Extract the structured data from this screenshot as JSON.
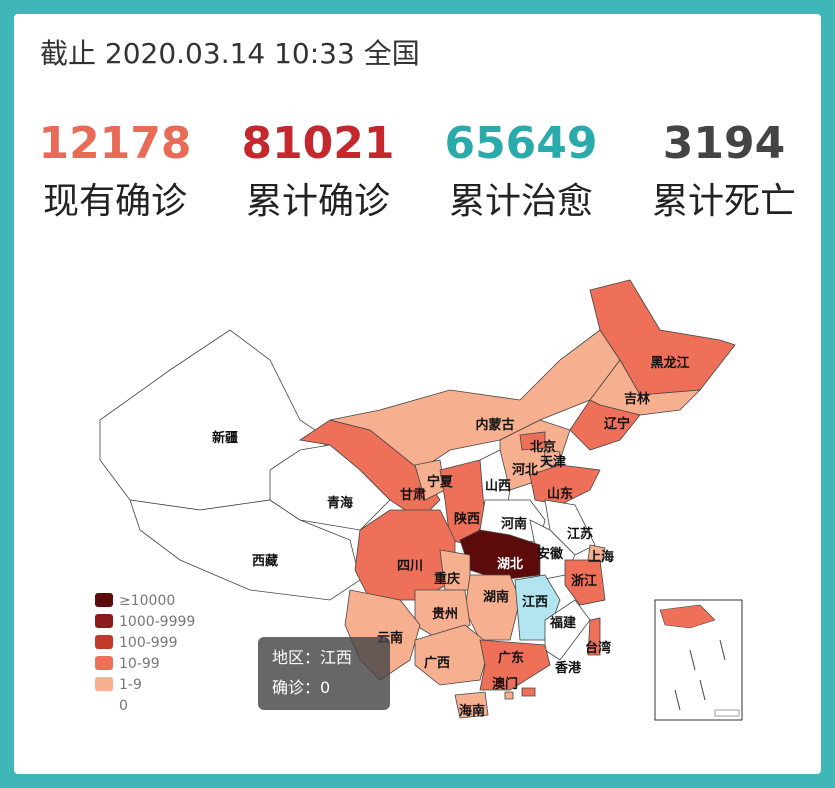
{
  "header": {
    "title": "截止 2020.03.14 10:33 全国"
  },
  "stats": [
    {
      "value": 12178,
      "label": "现有确诊",
      "color": "#e96b57"
    },
    {
      "value": 81021,
      "label": "累计确诊",
      "color": "#c4272c"
    },
    {
      "value": 65649,
      "label": "累计治愈",
      "color": "#2aaaaa"
    },
    {
      "value": 3194,
      "label": "累计死亡",
      "color": "#444444"
    }
  ],
  "legend": [
    {
      "label": "≥10000",
      "color": "#5c0a0a"
    },
    {
      "label": "1000-9999",
      "color": "#8b1a1a"
    },
    {
      "label": "100-999",
      "color": "#c0392b"
    },
    {
      "label": "10-99",
      "color": "#ee7058"
    },
    {
      "label": "1-9",
      "color": "#f7b08f"
    },
    {
      "label": "0",
      "color": "#ffffff"
    }
  ],
  "provinces": [
    {
      "name": "新疆",
      "color": "#ffffff"
    },
    {
      "name": "西藏",
      "color": "#ffffff"
    },
    {
      "name": "青海",
      "color": "#ffffff"
    },
    {
      "name": "甘肃",
      "color": "#ee7058"
    },
    {
      "name": "内蒙古",
      "color": "#f7b08f"
    },
    {
      "name": "黑龙江",
      "color": "#ee7058"
    },
    {
      "name": "吉林",
      "color": "#f7b08f"
    },
    {
      "name": "辽宁",
      "color": "#ee7058"
    },
    {
      "name": "河北",
      "color": "#f7b08f"
    },
    {
      "name": "北京",
      "color": "#ee7058"
    },
    {
      "name": "天津",
      "color": "#f7b08f"
    },
    {
      "name": "山西",
      "color": "#ffffff"
    },
    {
      "name": "山东",
      "color": "#ee7058"
    },
    {
      "name": "宁夏",
      "color": "#f7b08f"
    },
    {
      "name": "陕西",
      "color": "#ee7058"
    },
    {
      "name": "河南",
      "color": "#ffffff"
    },
    {
      "name": "江苏",
      "color": "#ffffff"
    },
    {
      "name": "安徽",
      "color": "#ffffff"
    },
    {
      "name": "上海",
      "color": "#f7b08f"
    },
    {
      "name": "湖北",
      "color": "#5c0a0a"
    },
    {
      "name": "四川",
      "color": "#ee7058"
    },
    {
      "name": "重庆",
      "color": "#f7b08f"
    },
    {
      "name": "浙江",
      "color": "#ee7058"
    },
    {
      "name": "湖南",
      "color": "#f7b08f"
    },
    {
      "name": "江西",
      "color": "#b3e5f0"
    },
    {
      "name": "福建",
      "color": "#ffffff"
    },
    {
      "name": "贵州",
      "color": "#f7b08f"
    },
    {
      "name": "云南",
      "color": "#f7b08f"
    },
    {
      "name": "广西",
      "color": "#f7b08f"
    },
    {
      "name": "广东",
      "color": "#ee7058"
    },
    {
      "name": "香港",
      "color": "#ee7058"
    },
    {
      "name": "澳门",
      "color": "#f7b08f"
    },
    {
      "name": "海南",
      "color": "#f7b08f"
    },
    {
      "name": "台湾",
      "color": "#ee7058"
    }
  ],
  "tooltip": {
    "region": "地区：江西",
    "count": "确诊：0"
  }
}
